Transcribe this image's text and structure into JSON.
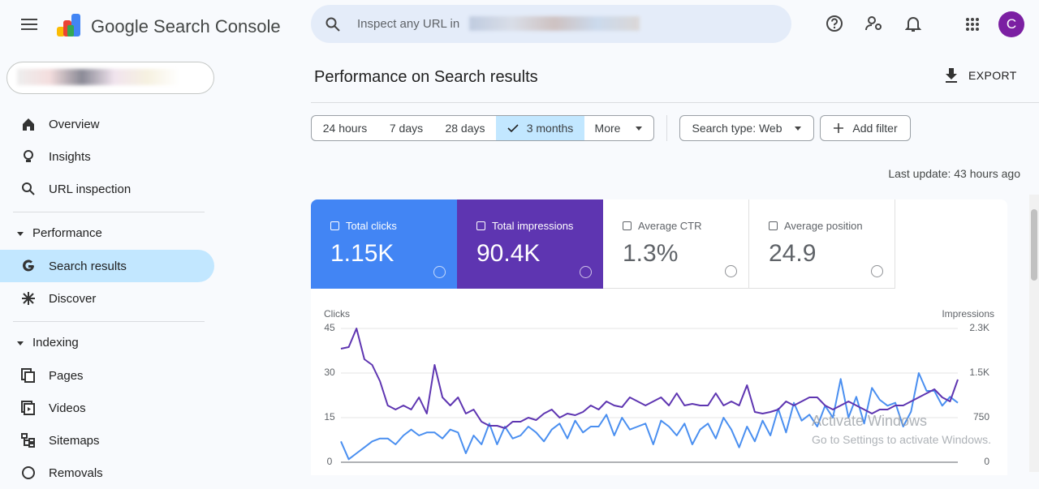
{
  "header": {
    "product": "Google Search Console",
    "search_placeholder": "Inspect any URL in",
    "avatar": "C"
  },
  "sidebar": {
    "top": [
      "Overview",
      "Insights",
      "URL inspection"
    ],
    "performance": {
      "title": "Performance",
      "items": [
        "Search results",
        "Discover"
      ]
    },
    "indexing": {
      "title": "Indexing",
      "items": [
        "Pages",
        "Videos",
        "Sitemaps",
        "Removals"
      ]
    }
  },
  "page": {
    "title": "Performance on Search results",
    "export": "EXPORT",
    "date_ranges": [
      "24 hours",
      "7 days",
      "28 days",
      "3 months",
      "More"
    ],
    "search_type": "Search type: Web",
    "add_filter": "Add filter",
    "last_update": "Last update: 43 hours ago"
  },
  "metrics": [
    {
      "label": "Total clicks",
      "value": "1.15K"
    },
    {
      "label": "Total impressions",
      "value": "90.4K"
    },
    {
      "label": "Average CTR",
      "value": "1.3%"
    },
    {
      "label": "Average position",
      "value": "24.9"
    }
  ],
  "chart_data": {
    "type": "line",
    "ylim": [
      0,
      45
    ],
    "yticks": [
      0,
      15,
      30,
      45
    ],
    "y2lim": [
      0,
      2250
    ],
    "y2ticks": [
      0,
      750,
      {
        "value": 1500,
        "label": "1.5K"
      },
      {
        "value": 2250,
        "label": "2.3K"
      }
    ],
    "grid": true,
    "series": [
      {
        "name": "Clicks",
        "color": "#4a8ff0",
        "values": [
          7,
          1,
          3,
          5,
          7,
          8,
          8,
          6,
          9,
          11,
          9,
          10,
          10,
          8,
          11,
          10,
          3,
          9,
          6,
          13,
          6,
          12,
          8,
          9,
          12,
          10,
          7,
          11,
          13,
          8,
          14,
          10,
          12,
          12,
          16,
          9,
          15,
          11,
          12,
          13,
          6,
          14,
          12,
          9,
          13,
          6,
          11,
          13,
          8,
          15,
          11,
          5,
          12,
          7,
          14,
          9,
          18,
          10,
          20,
          14,
          16,
          12,
          19,
          15,
          28,
          15,
          22,
          13,
          25,
          21,
          19,
          20,
          12,
          17,
          30,
          24,
          24,
          19,
          22,
          20
        ]
      },
      {
        "name": "Impressions",
        "color": "#5e35b1",
        "axis": "y2",
        "values": [
          1909,
          1936,
          2250,
          1732,
          1636,
          1364,
          955,
          886,
          955,
          886,
          1091,
          818,
          1636,
          1091,
          955,
          1091,
          818,
          886,
          682,
          614,
          614,
          573,
          682,
          682,
          750,
          709,
          818,
          886,
          750,
          818,
          791,
          845,
          955,
          886,
          1023,
          955,
          927,
          1091,
          1023,
          955,
          1023,
          1091,
          955,
          1159,
          955,
          982,
          955,
          955,
          1159,
          955,
          1023,
          955,
          1295,
          845,
          818,
          845,
          886,
          1023,
          955,
          1023,
          1091,
          1091,
          955,
          886,
          955,
          1023,
          955,
          886,
          818,
          886,
          886,
          955,
          955,
          1023,
          1091,
          1159,
          1227,
          1091,
          1023,
          1391
        ]
      }
    ]
  },
  "watermark": {
    "title": "Activate Windows",
    "subtitle": "Go to Settings to activate Windows."
  }
}
